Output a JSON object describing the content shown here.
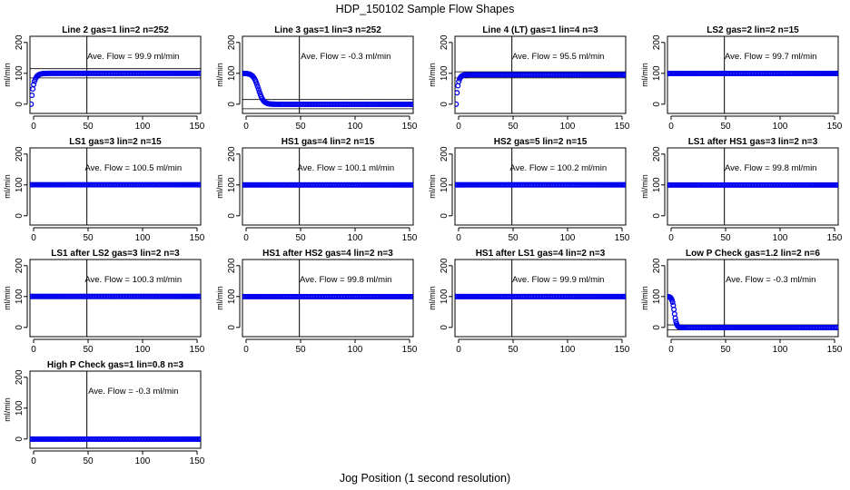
{
  "figure": {
    "title": "HDP_150102  Sample Flow Shapes",
    "xlabel": "Jog Position (1 second resolution)"
  },
  "colors": {
    "points": "#0000ee",
    "axis": "#000000"
  },
  "chart_data": [
    {
      "type": "scatter",
      "title": "Line 2 gas=1 lin=2 n=252",
      "ylabel": "ml/min",
      "annotation": "Ave. Flow =  99.9  ml/min",
      "xlim": [
        0,
        150
      ],
      "ylim": [
        -30,
        220
      ],
      "xticks": [
        0,
        50,
        100,
        150
      ],
      "yticks": [
        0,
        100,
        200
      ],
      "vline": 50,
      "hlines": [
        85,
        115
      ],
      "shape": "rise",
      "steady": 99.9,
      "start": 0,
      "tau": 2.2,
      "n_transient": 20,
      "end_transient": 16
    },
    {
      "type": "scatter",
      "title": "Line 3 gas=1 lin=3 n=252",
      "ylabel": "ml/min",
      "annotation": "Ave. Flow =  -0.3  ml/min",
      "xlim": [
        0,
        150
      ],
      "ylim": [
        -30,
        220
      ],
      "xticks": [
        0,
        50,
        100,
        150
      ],
      "yticks": [
        0,
        100,
        200
      ],
      "vline": 50,
      "hlines": [
        -15,
        15
      ],
      "shape": "fall",
      "steady": -0.3,
      "start": 100,
      "center": 14,
      "width": 2.2,
      "n_transient": 40,
      "end_transient": 32
    },
    {
      "type": "scatter",
      "title": "Line 4 (LT) gas=1 lin=4 n=3",
      "ylabel": "ml/min",
      "annotation": "Ave. Flow =  95.5  ml/min",
      "xlim": [
        0,
        150
      ],
      "ylim": [
        -30,
        220
      ],
      "xticks": [
        0,
        50,
        100,
        150
      ],
      "yticks": [
        0,
        100,
        200
      ],
      "vline": 50,
      "hlines": [
        85,
        105
      ],
      "shape": "rise",
      "steady": 95.5,
      "start": 0,
      "tau": 1.6,
      "n_transient": 14,
      "end_transient": 12
    },
    {
      "type": "scatter",
      "title": "LS2 gas=2 lin=2 n=15",
      "ylabel": "ml/min",
      "annotation": "Ave. Flow =  99.7  ml/min",
      "xlim": [
        0,
        150
      ],
      "ylim": [
        -30,
        220
      ],
      "xticks": [
        0,
        50,
        100,
        150
      ],
      "yticks": [
        0,
        100,
        200
      ],
      "vline": 50,
      "hlines": [
        93,
        107
      ],
      "shape": "flat",
      "steady": 99.7
    },
    {
      "type": "scatter",
      "title": "LS1 gas=3 lin=2 n=15",
      "ylabel": "ml/min",
      "annotation": "Ave. Flow =  100.5  ml/min",
      "xlim": [
        0,
        150
      ],
      "ylim": [
        -30,
        220
      ],
      "xticks": [
        0,
        50,
        100,
        150
      ],
      "yticks": [
        0,
        100,
        200
      ],
      "vline": 50,
      "hlines": [
        94,
        107
      ],
      "shape": "flat",
      "steady": 100.5
    },
    {
      "type": "scatter",
      "title": "HS1 gas=4 lin=2 n=15",
      "ylabel": "ml/min",
      "annotation": "Ave. Flow = 100.1  ml/min",
      "xlim": [
        0,
        150
      ],
      "ylim": [
        -30,
        220
      ],
      "xticks": [
        0,
        50,
        100,
        150
      ],
      "yticks": [
        0,
        100,
        200
      ],
      "vline": 50,
      "hlines": [
        94,
        107
      ],
      "shape": "flat",
      "steady": 100.1
    },
    {
      "type": "scatter",
      "title": "HS2 gas=5 lin=2 n=15",
      "ylabel": "ml/min",
      "annotation": "Ave. Flow =  100.2  ml/min",
      "xlim": [
        0,
        150
      ],
      "ylim": [
        -30,
        220
      ],
      "xticks": [
        0,
        50,
        100,
        150
      ],
      "yticks": [
        0,
        100,
        200
      ],
      "vline": 50,
      "hlines": [
        94,
        107
      ],
      "shape": "flat",
      "steady": 100.2
    },
    {
      "type": "scatter",
      "title": "LS1 after HS1 gas=3 lin=2 n=3",
      "ylabel": "ml/min",
      "annotation": "Ave. Flow =  99.8  ml/min",
      "xlim": [
        0,
        150
      ],
      "ylim": [
        -30,
        220
      ],
      "xticks": [
        0,
        50,
        100,
        150
      ],
      "yticks": [
        0,
        100,
        200
      ],
      "vline": 50,
      "hlines": [
        94,
        107
      ],
      "shape": "flat",
      "steady": 99.8
    },
    {
      "type": "scatter",
      "title": "LS1 after LS2 gas=3 lin=2 n=3",
      "ylabel": "ml/min",
      "annotation": "Ave. Flow =  100.3  ml/min",
      "xlim": [
        0,
        150
      ],
      "ylim": [
        -30,
        220
      ],
      "xticks": [
        0,
        50,
        100,
        150
      ],
      "yticks": [
        0,
        100,
        200
      ],
      "vline": 50,
      "hlines": [
        94,
        107
      ],
      "shape": "flat",
      "steady": 100.3
    },
    {
      "type": "scatter",
      "title": "HS1 after HS2 gas=4 lin=2 n=3",
      "ylabel": "ml/min",
      "annotation": "Ave. Flow =  99.8  ml/min",
      "xlim": [
        0,
        150
      ],
      "ylim": [
        -30,
        220
      ],
      "xticks": [
        0,
        50,
        100,
        150
      ],
      "yticks": [
        0,
        100,
        200
      ],
      "vline": 50,
      "hlines": [
        94,
        107
      ],
      "shape": "flat",
      "steady": 99.8
    },
    {
      "type": "scatter",
      "title": "HS1 after LS1 gas=4 lin=2 n=3",
      "ylabel": "ml/min",
      "annotation": "Ave. Flow =  99.9  ml/min",
      "xlim": [
        0,
        150
      ],
      "ylim": [
        -30,
        220
      ],
      "xticks": [
        0,
        50,
        100,
        150
      ],
      "yticks": [
        0,
        100,
        200
      ],
      "vline": 50,
      "hlines": [
        94,
        107
      ],
      "shape": "flat",
      "steady": 99.9
    },
    {
      "type": "scatter",
      "title": "Low P Check gas=1.2 lin=2 n=6",
      "ylabel": "ml/min",
      "annotation": "Ave. Flow =  -0.3  ml/min",
      "xlim": [
        0,
        150
      ],
      "ylim": [
        -30,
        220
      ],
      "xticks": [
        0,
        50,
        100,
        150
      ],
      "yticks": [
        0,
        100,
        200
      ],
      "vline": 50,
      "hlines": [
        -8,
        8
      ],
      "shape": "fall",
      "steady": -0.3,
      "start": 100,
      "center": 6,
      "width": 1.0,
      "n_transient": 24,
      "end_transient": 15
    },
    {
      "type": "scatter",
      "title": "High P Check gas=1 lin=0.8 n=3",
      "ylabel": "ml/min",
      "annotation": "Ave. Flow =  -0.3  ml/min",
      "xlim": [
        0,
        150
      ],
      "ylim": [
        -30,
        220
      ],
      "xticks": [
        0,
        50,
        100,
        150
      ],
      "yticks": [
        0,
        100,
        200
      ],
      "vline": 50,
      "hlines": [
        -5,
        5
      ],
      "shape": "flat",
      "steady": -0.3
    }
  ]
}
